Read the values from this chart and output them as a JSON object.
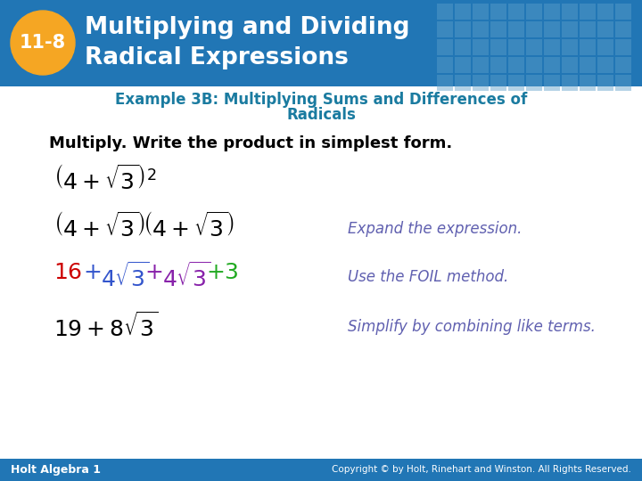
{
  "header_bg_color": "#2176b5",
  "header_grid_color": "#5b9ec9",
  "header_title_line1": "Multiplying and Dividing",
  "header_title_line2": "Radical Expressions",
  "badge_text": "11-8",
  "badge_color": "#f5a623",
  "example_title_line1": "Example 3B: Multiplying Sums and Differences of",
  "example_title_line2": "Radicals",
  "example_title_color": "#1a7ba0",
  "instruction": "Multiply. Write the product in simplest form.",
  "footer_left": "Holt Algebra 1",
  "footer_right": "Copyright © by Holt, Rinehart and Winston. All Rights Reserved.",
  "footer_bg": "#2176b5",
  "bg_color": "#ffffff",
  "annotation1": "Expand the expression.",
  "annotation2": "Use the FOIL method.",
  "annotation3": "Simplify by combining like terms.",
  "annotation_color": "#6060b0",
  "color_red": "#cc0000",
  "color_blue": "#3355cc",
  "color_purple": "#8822aa",
  "color_green": "#22aa22"
}
